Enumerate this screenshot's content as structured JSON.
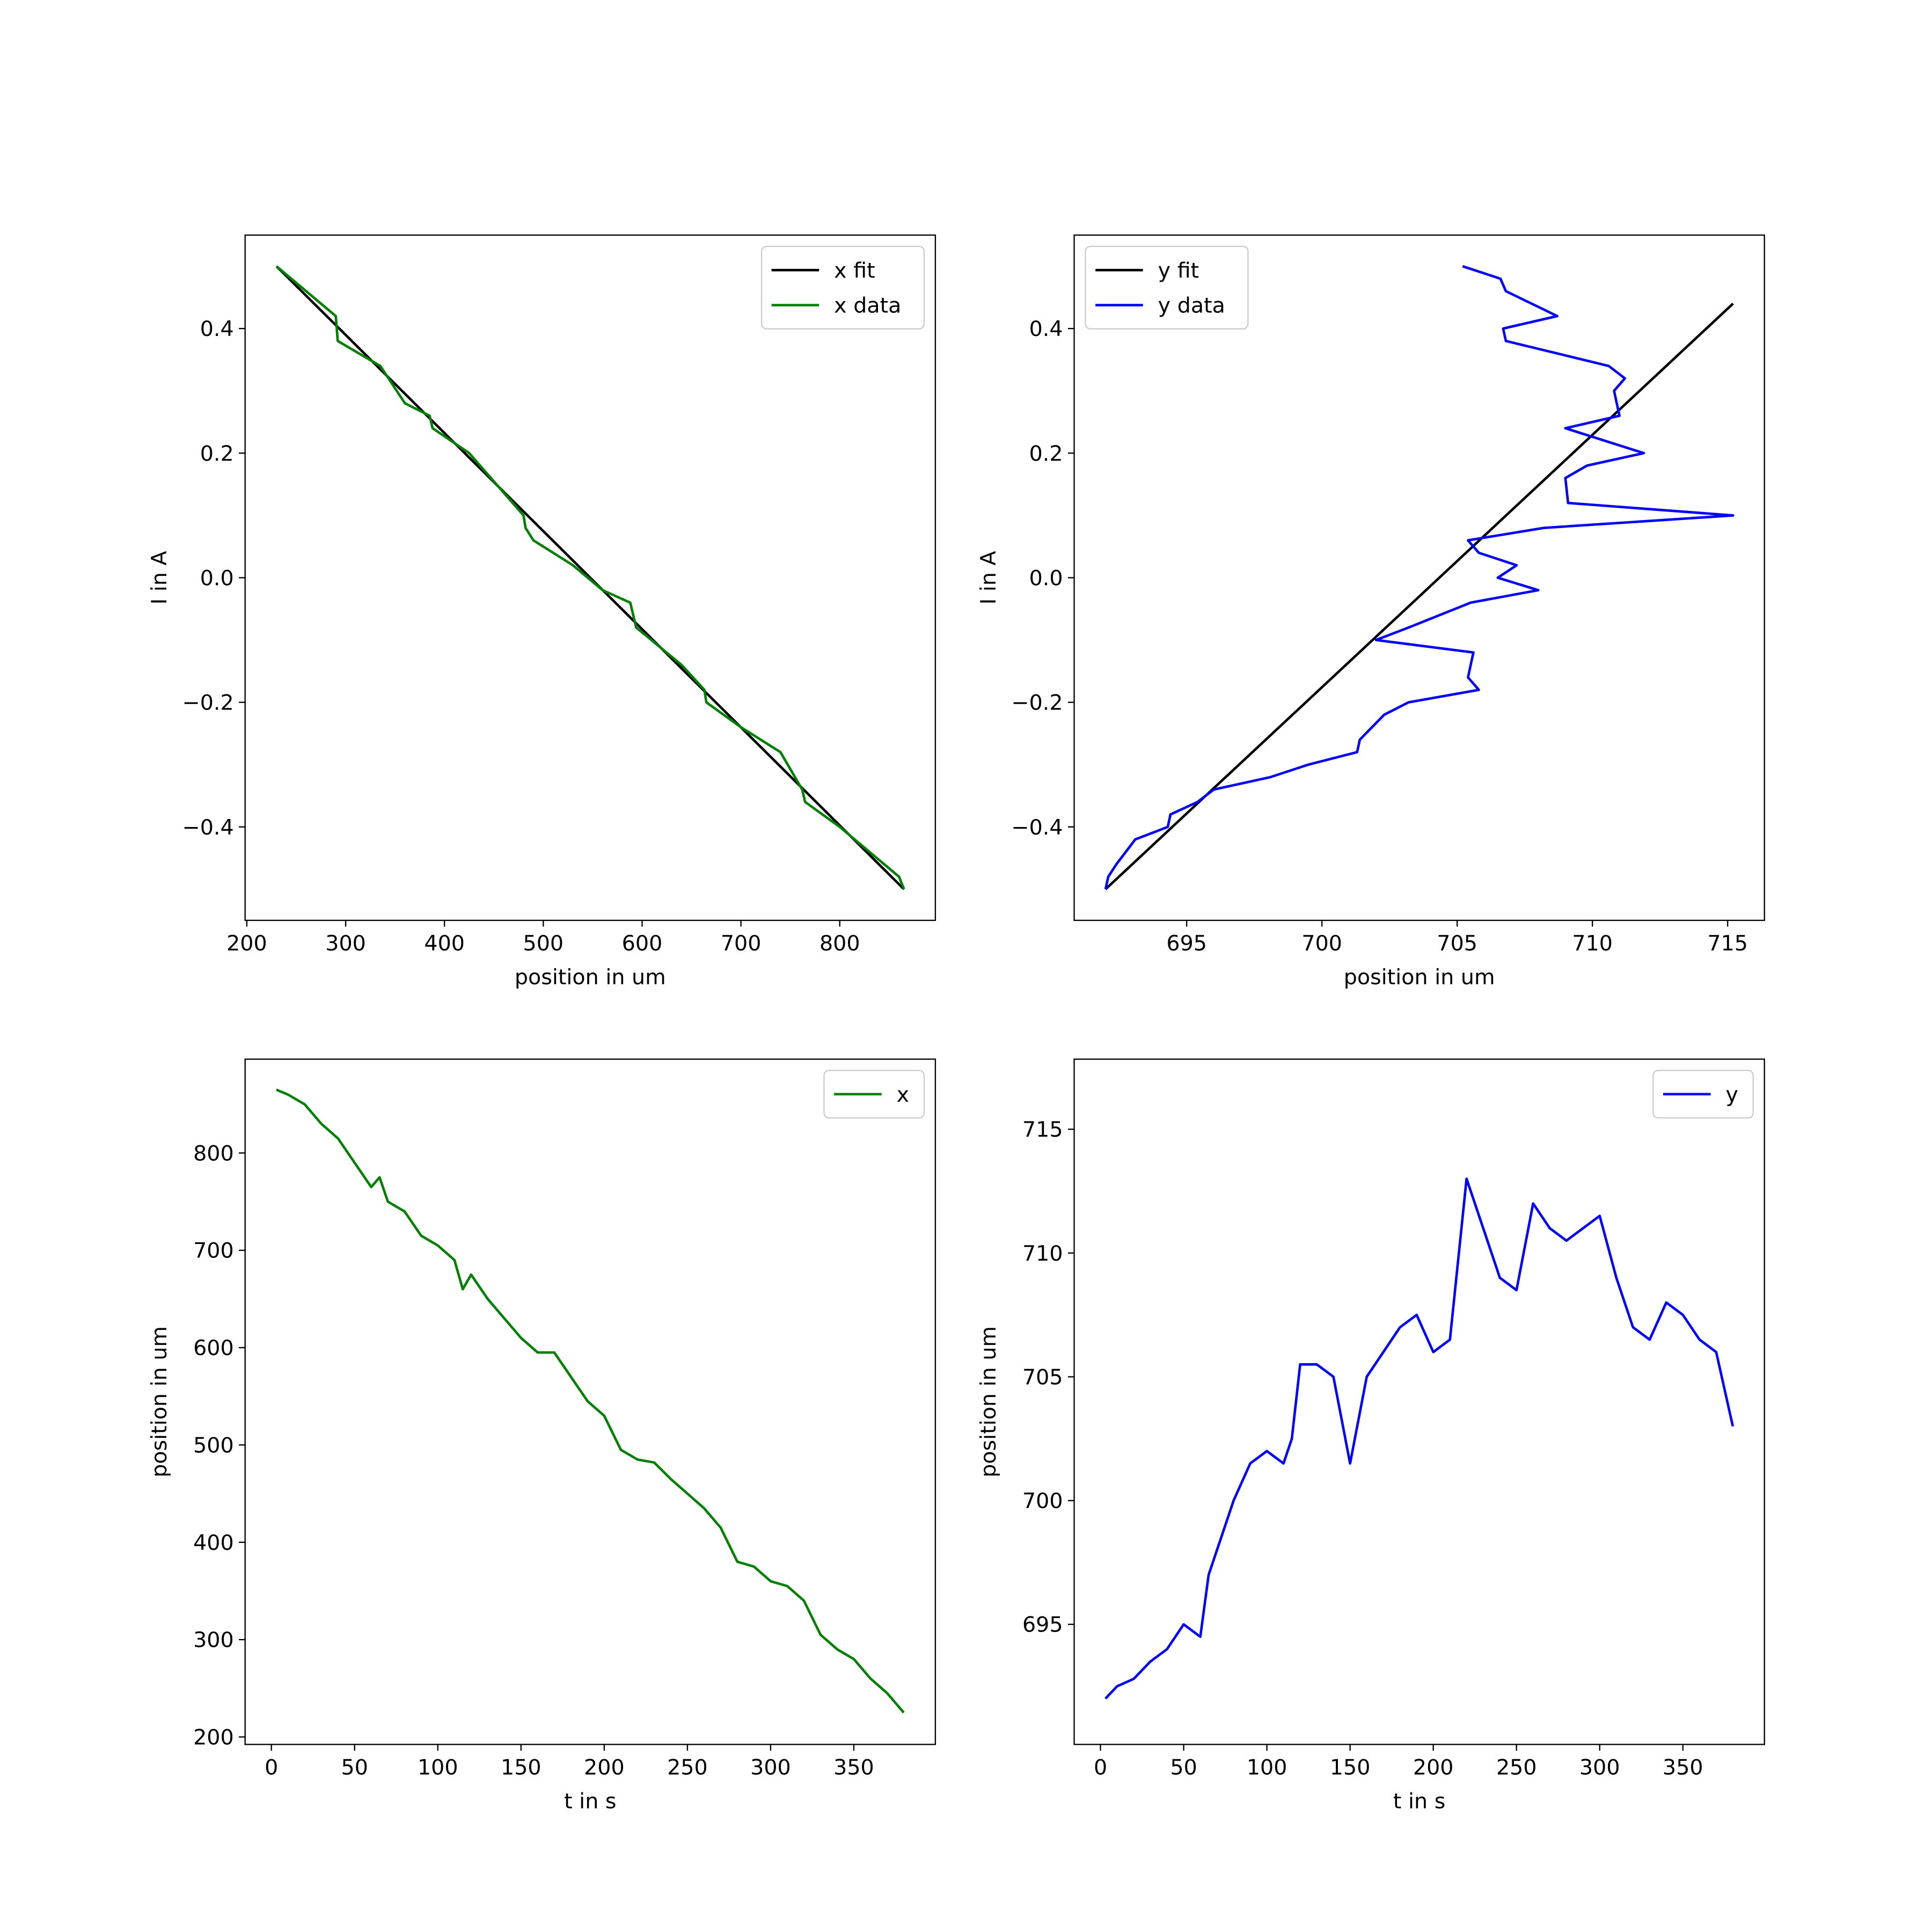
{
  "chart_data": [
    {
      "type": "line",
      "xlabel": "position in um",
      "ylabel": "I in A",
      "legend": "upper right",
      "xlim": [
        198.25,
        896.75
      ],
      "xticks": [
        200,
        300,
        400,
        500,
        600,
        700,
        800
      ],
      "ylim": [
        -0.55,
        0.55
      ],
      "yticks": [
        {
          "value": -0.4,
          "label": "−0.4"
        },
        {
          "value": -0.2,
          "label": "−0.2"
        },
        {
          "value": 0,
          "label": "0.0"
        },
        0.2,
        0.4
      ],
      "series": [
        {
          "name": "x fit",
          "color": "#000000",
          "x": [
            230,
            865
          ],
          "values": [
            0.5,
            -0.5
          ]
        },
        {
          "name": "x data",
          "color": "#008000",
          "x": [
            230,
            260,
            290,
            292,
            335,
            360,
            385,
            388,
            425,
            480,
            482,
            490,
            530,
            560,
            588,
            594,
            640,
            663,
            665,
            700,
            740,
            762,
            765,
            800,
            830,
            860,
            865
          ],
          "values": [
            0.5,
            0.46,
            0.42,
            0.38,
            0.34,
            0.28,
            0.26,
            0.24,
            0.2,
            0.1,
            0.08,
            0.06,
            0.02,
            -0.02,
            -0.04,
            -0.08,
            -0.14,
            -0.18,
            -0.2,
            -0.24,
            -0.28,
            -0.34,
            -0.36,
            -0.4,
            -0.44,
            -0.48,
            -0.5
          ]
        }
      ]
    },
    {
      "type": "line",
      "xlabel": "position in um",
      "ylabel": "I in A",
      "legend": "upper left",
      "xlim": [
        690.84,
        716.36
      ],
      "xticks": [
        695,
        700,
        705,
        710,
        715
      ],
      "ylim": [
        -0.55,
        0.55
      ],
      "yticks": [
        {
          "value": -0.4,
          "label": "−0.4"
        },
        {
          "value": -0.2,
          "label": "−0.2"
        },
        {
          "value": 0,
          "label": "0.0"
        },
        0.2,
        0.4
      ],
      "series": [
        {
          "name": "y fit",
          "color": "#000000",
          "x": [
            692,
            715.2
          ],
          "values": [
            -0.5,
            0.44
          ]
        },
        {
          "name": "y data",
          "color": "#0000ff",
          "x": [
            705.2,
            706.6,
            706.8,
            708.7,
            706.7,
            706.8,
            710.6,
            711.2,
            710.8,
            711.0,
            709.0,
            711.9,
            709.8,
            709.0,
            709.1,
            715.2,
            708.2,
            705.4,
            705.8,
            707.2,
            706.5,
            708.0,
            705.5,
            703.2,
            702.0,
            705.6,
            705.4,
            705.8,
            703.2,
            702.3,
            701.4,
            701.3,
            699.5,
            698.1,
            696.0,
            695.4,
            694.4,
            694.3,
            693.1,
            692.4,
            692.1,
            692.0
          ],
          "values": [
            0.5,
            0.48,
            0.46,
            0.42,
            0.4,
            0.38,
            0.34,
            0.32,
            0.3,
            0.26,
            0.24,
            0.2,
            0.18,
            0.16,
            0.12,
            0.1,
            0.08,
            0.06,
            0.04,
            0.02,
            0,
            -0.02,
            -0.04,
            -0.08,
            -0.1,
            -0.12,
            -0.16,
            -0.18,
            -0.2,
            -0.22,
            -0.26,
            -0.28,
            -0.3,
            -0.32,
            -0.34,
            -0.36,
            -0.38,
            -0.4,
            -0.42,
            -0.46,
            -0.48,
            -0.5
          ]
        }
      ]
    },
    {
      "type": "line",
      "xlabel": "t in s",
      "ylabel": "position in um",
      "legend": "upper right",
      "xlim": [
        -15.8,
        399
      ],
      "xticks": [
        0,
        50,
        100,
        150,
        200,
        250,
        300,
        350
      ],
      "ylim": [
        192.3,
        896.4
      ],
      "yticks": [
        200,
        300,
        400,
        500,
        600,
        700,
        800
      ],
      "series": [
        {
          "name": "x",
          "color": "#008000",
          "x": [
            3,
            10,
            20,
            30,
            40,
            50,
            60,
            65,
            70,
            80,
            90,
            100,
            110,
            115,
            120,
            130,
            140,
            150,
            160,
            170,
            180,
            190,
            200,
            210,
            220,
            230,
            240,
            250,
            260,
            270,
            280,
            290,
            300,
            310,
            320,
            330,
            340,
            350,
            360,
            370,
            380
          ],
          "values": [
            865,
            860,
            850,
            830,
            815,
            790,
            765,
            775,
            750,
            740,
            715,
            705,
            690,
            660,
            675,
            650,
            630,
            610,
            595,
            595,
            570,
            545,
            530,
            495,
            485,
            482,
            465,
            450,
            435,
            415,
            380,
            375,
            360,
            355,
            340,
            305,
            290,
            280,
            260,
            245,
            225
          ]
        }
      ]
    },
    {
      "type": "line",
      "xlabel": "t in s",
      "ylabel": "position in um",
      "legend": "upper right",
      "xlim": [
        -15.8,
        399
      ],
      "xticks": [
        0,
        50,
        100,
        150,
        200,
        250,
        300,
        350
      ],
      "ylim": [
        690.15,
        717.83
      ],
      "yticks": [
        695,
        700,
        705,
        710,
        715
      ],
      "series": [
        {
          "name": "y",
          "color": "#0000ff",
          "x": [
            3,
            10,
            20,
            30,
            40,
            50,
            60,
            65,
            70,
            80,
            90,
            100,
            110,
            115,
            120,
            130,
            140,
            150,
            160,
            170,
            180,
            190,
            200,
            210,
            220,
            230,
            240,
            250,
            260,
            270,
            280,
            290,
            300,
            310,
            320,
            330,
            340,
            350,
            360,
            370,
            380
          ],
          "values": [
            692,
            692.5,
            692.8,
            693.5,
            694,
            695,
            694.5,
            697,
            698,
            700,
            701.5,
            702,
            701.5,
            702.5,
            705.5,
            705.5,
            705,
            701.5,
            705,
            706,
            707,
            707.5,
            706,
            706.5,
            713,
            711,
            709,
            708.5,
            712,
            711,
            710.5,
            711,
            711.5,
            709,
            707,
            706.5,
            708,
            707.5,
            706.5,
            706,
            703
          ]
        }
      ]
    }
  ]
}
